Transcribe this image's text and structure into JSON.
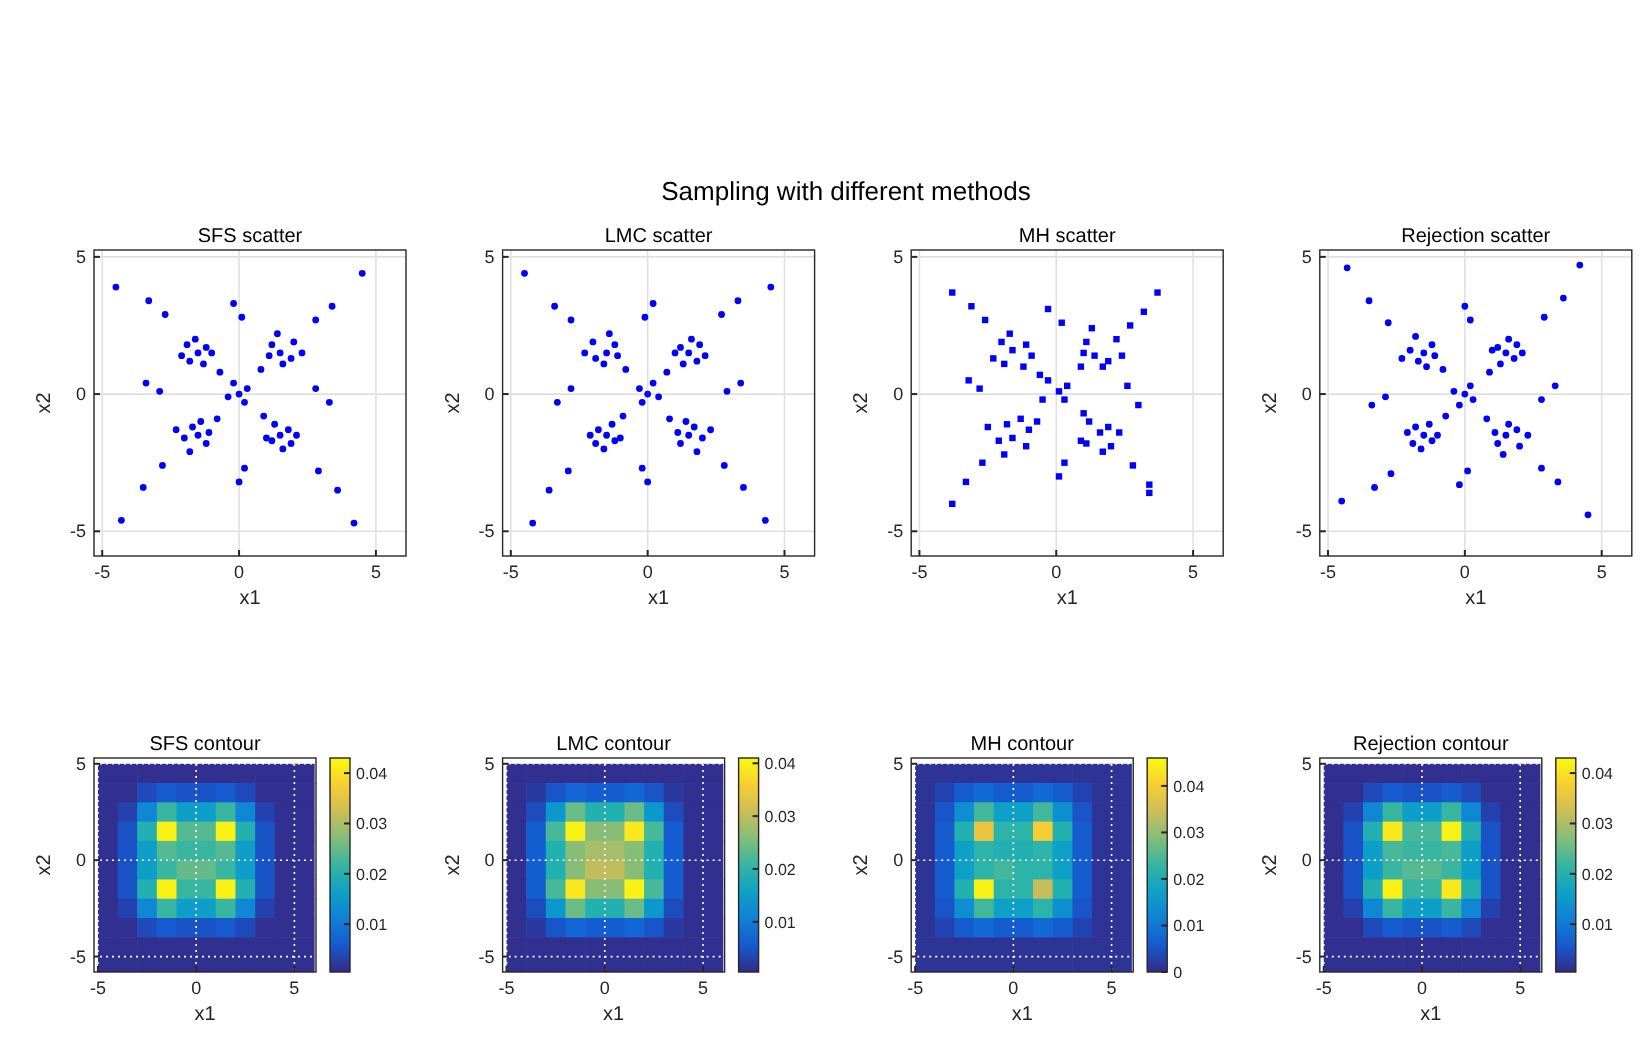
{
  "chart_data": [
    {
      "type": "scatter",
      "title": "SFS scatter",
      "xlabel": "x1",
      "ylabel": "x2",
      "annotations": [
        "Sampling with different methods"
      ],
      "xlim": [
        -5.3,
        6.1
      ],
      "ylim": [
        -5.9,
        5.25
      ],
      "xticks": [
        -5,
        0,
        5
      ],
      "yticks": [
        -5,
        0,
        5
      ],
      "grid": true,
      "marker": "circle",
      "color": "#0000ff",
      "x": [
        1.5,
        1.2,
        1.9,
        1.6,
        1.1,
        2.0,
        1.4,
        2.3,
        -1.5,
        -1.8,
        -1.2,
        -1.6,
        -2.1,
        -1.3,
        -1.9,
        -1.0,
        -1.5,
        -1.7,
        -1.2,
        -2.0,
        -1.4,
        -1.8,
        -1.1,
        -2.3,
        1.5,
        1.8,
        1.2,
        1.6,
        2.1,
        1.3,
        1.9,
        1.0,
        0,
        0.3,
        -0.2,
        0.2,
        -0.4,
        2.8,
        3.4,
        -2.7,
        -3.3,
        -2.8,
        -3.5,
        2.9,
        3.6,
        0.1,
        -0.2,
        0.2,
        0,
        2.8,
        3.3,
        -2.9,
        -3.4,
        4.5,
        -4.3,
        4.2,
        -4.5,
        0.8,
        -0.7,
        0.9,
        -0.8
      ],
      "values": [
        1.5,
        1.8,
        1.3,
        1.1,
        1.4,
        1.9,
        2.2,
        1.5,
        1.5,
        1.2,
        1.7,
        2.0,
        1.4,
        1.1,
        1.8,
        1.5,
        -1.5,
        -1.2,
        -1.8,
        -1.6,
        -1.0,
        -2.1,
        -1.4,
        -1.3,
        -1.5,
        -1.3,
        -1.7,
        -2.0,
        -1.5,
        -1.1,
        -1.8,
        -1.6,
        0,
        0.2,
        0.4,
        -0.3,
        -0.1,
        2.7,
        3.2,
        2.9,
        3.4,
        -2.6,
        -3.4,
        -2.8,
        -3.5,
        2.8,
        3.3,
        -2.7,
        -3.2,
        0.2,
        -0.3,
        0.1,
        0.4,
        4.4,
        -4.6,
        -4.7,
        3.9,
        0.9,
        0.8,
        -0.8,
        -0.9
      ]
    },
    {
      "type": "scatter",
      "title": "LMC scatter",
      "xlabel": "x1",
      "ylabel": "x2",
      "xlim": [
        -5.3,
        6.1
      ],
      "ylim": [
        -5.9,
        5.25
      ],
      "xticks": [
        -5,
        0,
        5
      ],
      "yticks": [
        -5,
        0,
        5
      ],
      "grid": true,
      "marker": "circle",
      "color": "#0000ff",
      "x": [
        -1.5,
        -1.2,
        -1.9,
        -1.6,
        -1.1,
        -2.0,
        -1.4,
        -2.3,
        1.5,
        1.8,
        1.2,
        1.6,
        2.1,
        1.3,
        1.9,
        1.0,
        1.5,
        1.7,
        1.2,
        2.0,
        1.4,
        1.8,
        1.1,
        2.3,
        -1.5,
        -1.8,
        -1.2,
        -1.6,
        -2.1,
        -1.3,
        -1.9,
        -1.0,
        0,
        -0.3,
        0.2,
        -0.2,
        0.4,
        -2.8,
        -3.4,
        2.7,
        3.3,
        2.8,
        3.5,
        -2.9,
        -3.6,
        -0.1,
        0.2,
        -0.2,
        0,
        -2.8,
        -3.3,
        2.9,
        3.4,
        -4.5,
        4.3,
        -4.2,
        4.5,
        -0.8,
        0.7,
        -0.9,
        0.8
      ],
      "values": [
        1.5,
        1.8,
        1.3,
        1.1,
        1.4,
        1.9,
        2.2,
        1.5,
        1.5,
        1.2,
        1.7,
        2.0,
        1.4,
        1.1,
        1.8,
        1.5,
        -1.5,
        -1.2,
        -1.8,
        -1.6,
        -1.0,
        -2.1,
        -1.4,
        -1.3,
        -1.5,
        -1.3,
        -1.7,
        -2.0,
        -1.5,
        -1.1,
        -1.8,
        -1.6,
        0,
        0.2,
        0.4,
        -0.3,
        -0.1,
        2.7,
        3.2,
        2.9,
        3.4,
        -2.6,
        -3.4,
        -2.8,
        -3.5,
        2.8,
        3.3,
        -2.7,
        -3.2,
        0.2,
        -0.3,
        0.1,
        0.4,
        4.4,
        -4.6,
        -4.7,
        3.9,
        0.9,
        0.8,
        -0.8,
        -0.9
      ]
    },
    {
      "type": "scatter",
      "title": "MH scatter",
      "xlabel": "x1",
      "ylabel": "x2",
      "xlim": [
        -5.3,
        6.1
      ],
      "ylim": [
        -5.9,
        5.25
      ],
      "xticks": [
        -5,
        0,
        5
      ],
      "yticks": [
        -5,
        0,
        5
      ],
      "grid": true,
      "marker": "square",
      "color": "#0000ff",
      "x": [
        1.4,
        1.1,
        1.9,
        1.7,
        1.0,
        2.2,
        1.3,
        2.4,
        -1.6,
        -1.9,
        -1.1,
        -1.7,
        -2.3,
        -1.2,
        -2.0,
        -0.9,
        -1.6,
        -1.8,
        -1.1,
        -2.1,
        -1.3,
        -1.9,
        -1.0,
        -2.5,
        1.6,
        1.9,
        1.1,
        1.7,
        2.3,
        1.2,
        2.0,
        0.9,
        0.1,
        0.4,
        -0.3,
        0.3,
        -0.5,
        2.7,
        3.2,
        -2.6,
        -3.1,
        -2.7,
        -3.3,
        2.8,
        3.4,
        0.2,
        -0.3,
        0.3,
        0.1,
        2.6,
        3.0,
        -2.8,
        -3.2,
        3.7,
        -3.8,
        3.4,
        -3.8,
        0.9,
        -0.6,
        1.0,
        -0.7
      ],
      "values": [
        1.4,
        1.9,
        1.2,
        1.0,
        1.5,
        2.0,
        2.4,
        1.4,
        1.6,
        1.1,
        1.8,
        2.2,
        1.3,
        1.0,
        1.9,
        1.4,
        -1.6,
        -1.1,
        -1.9,
        -1.7,
        -0.9,
        -2.2,
        -1.3,
        -1.2,
        -1.4,
        -1.2,
        -1.8,
        -2.1,
        -1.4,
        -1.0,
        -1.9,
        -1.7,
        0.1,
        0.3,
        0.5,
        -0.2,
        -0.2,
        2.5,
        3.0,
        2.7,
        3.2,
        -2.5,
        -3.2,
        -2.6,
        -3.3,
        2.6,
        3.1,
        -2.5,
        -3.0,
        0.3,
        -0.4,
        0.2,
        0.5,
        3.7,
        -4.0,
        -3.6,
        3.7,
        1.0,
        0.7,
        -0.7,
        -1.0
      ]
    },
    {
      "type": "scatter",
      "title": "Rejection scatter",
      "xlabel": "x1",
      "ylabel": "x2",
      "xlim": [
        -5.3,
        6.1
      ],
      "ylim": [
        -5.9,
        5.25
      ],
      "xticks": [
        -5,
        0,
        5
      ],
      "yticks": [
        -5,
        0,
        5
      ],
      "grid": true,
      "marker": "circle",
      "color": "#0000ff",
      "x": [
        1.5,
        1.2,
        1.9,
        1.6,
        1.1,
        2.0,
        1.4,
        2.3,
        -1.5,
        -1.8,
        -1.2,
        -1.6,
        -2.1,
        -1.3,
        -1.9,
        -1.0,
        -1.5,
        -1.7,
        -1.2,
        -2.0,
        -1.4,
        -1.8,
        -1.1,
        -2.3,
        1.5,
        1.8,
        1.2,
        1.6,
        2.1,
        1.3,
        1.9,
        1.0,
        0,
        0.3,
        -0.2,
        0.2,
        -0.4,
        2.8,
        3.4,
        -2.7,
        -3.3,
        -2.8,
        -3.5,
        2.9,
        3.6,
        0.1,
        -0.2,
        0.2,
        0,
        2.8,
        3.3,
        -2.9,
        -3.4,
        4.5,
        -4.3,
        4.2,
        -4.5,
        0.8,
        -0.7,
        0.9,
        -0.8
      ],
      "values": [
        -1.5,
        -1.8,
        -1.3,
        -1.1,
        -1.4,
        -1.9,
        -2.2,
        -1.5,
        -1.5,
        -1.2,
        -1.7,
        -2.0,
        -1.4,
        -1.1,
        -1.8,
        -1.5,
        1.5,
        1.2,
        1.8,
        1.6,
        1.0,
        2.1,
        1.4,
        1.3,
        1.5,
        1.3,
        1.7,
        2.0,
        1.5,
        1.1,
        1.8,
        1.6,
        0,
        -0.2,
        -0.4,
        0.3,
        0.1,
        -2.7,
        -3.2,
        -2.9,
        -3.4,
        2.6,
        3.4,
        2.8,
        3.5,
        -2.8,
        -3.3,
        2.7,
        3.2,
        -0.2,
        0.3,
        -0.1,
        -0.4,
        -4.4,
        4.6,
        4.7,
        -3.9,
        -0.9,
        -0.8,
        0.8,
        0.9
      ]
    },
    {
      "type": "heatmap",
      "title": "SFS contour",
      "xlabel": "x1",
      "ylabel": "x2",
      "xlim": [
        -5.2,
        6.1
      ],
      "ylim": [
        -5.8,
        5.3
      ],
      "xticks": [
        -5,
        0,
        5
      ],
      "yticks": [
        -5,
        0,
        5
      ],
      "grid": true,
      "clim": [
        0.0005,
        0.043
      ],
      "cticks": [
        0.01,
        0.02,
        0.03,
        0.04
      ],
      "x": [
        -4.5,
        -3.5,
        -2.5,
        -1.5,
        -0.5,
        0.5,
        1.5,
        2.5,
        3.5,
        4.5,
        5.5
      ],
      "y": [
        4.5,
        3.5,
        2.5,
        1.5,
        0.5,
        -0.5,
        -1.5,
        -2.5,
        -3.5,
        -4.5,
        -5.5
      ],
      "cells": [
        [
          0.001,
          0.001,
          0.001,
          0.001,
          0.001,
          0.001,
          0.001,
          0.001,
          0.001,
          0.001,
          0.001
        ],
        [
          0.001,
          0.001,
          0.004,
          0.006,
          0.005,
          0.005,
          0.006,
          0.004,
          0.001,
          0.001,
          0.001
        ],
        [
          0.001,
          0.003,
          0.012,
          0.022,
          0.016,
          0.016,
          0.022,
          0.012,
          0.003,
          0.001,
          0.001
        ],
        [
          0.001,
          0.005,
          0.02,
          0.042,
          0.024,
          0.024,
          0.042,
          0.02,
          0.005,
          0.001,
          0.001
        ],
        [
          0.001,
          0.005,
          0.016,
          0.024,
          0.022,
          0.022,
          0.024,
          0.016,
          0.005,
          0.001,
          0.001
        ],
        [
          0.001,
          0.005,
          0.016,
          0.022,
          0.025,
          0.025,
          0.022,
          0.016,
          0.005,
          0.001,
          0.001
        ],
        [
          0.001,
          0.005,
          0.02,
          0.042,
          0.022,
          0.022,
          0.042,
          0.02,
          0.005,
          0.001,
          0.001
        ],
        [
          0.001,
          0.003,
          0.012,
          0.022,
          0.016,
          0.016,
          0.022,
          0.012,
          0.003,
          0.001,
          0.001
        ],
        [
          0.001,
          0.001,
          0.004,
          0.006,
          0.005,
          0.005,
          0.006,
          0.004,
          0.001,
          0.001,
          0.001
        ],
        [
          0.001,
          0.001,
          0.001,
          0.001,
          0.001,
          0.001,
          0.001,
          0.001,
          0.001,
          0.001,
          0.001
        ],
        [
          0.001,
          0.001,
          0.001,
          0.001,
          0.001,
          0.001,
          0.001,
          0.001,
          0.001,
          0.001,
          0.001
        ]
      ]
    },
    {
      "type": "heatmap",
      "title": "LMC contour",
      "xlabel": "x1",
      "ylabel": "x2",
      "xlim": [
        -5.2,
        6.1
      ],
      "ylim": [
        -5.8,
        5.3
      ],
      "xticks": [
        -5,
        0,
        5
      ],
      "yticks": [
        -5,
        0,
        5
      ],
      "grid": true,
      "clim": [
        0.0005,
        0.041
      ],
      "cticks": [
        0.01,
        0.02,
        0.03,
        0.04
      ],
      "x": [
        -4.5,
        -3.5,
        -2.5,
        -1.5,
        -0.5,
        0.5,
        1.5,
        2.5,
        3.5,
        4.5,
        5.5
      ],
      "y": [
        4.5,
        3.5,
        2.5,
        1.5,
        0.5,
        -0.5,
        -1.5,
        -2.5,
        -3.5,
        -4.5,
        -5.5
      ],
      "cells": [
        [
          0.001,
          0.001,
          0.001,
          0.001,
          0.001,
          0.001,
          0.001,
          0.001,
          0.001,
          0.001,
          0.001
        ],
        [
          0.001,
          0.002,
          0.005,
          0.007,
          0.006,
          0.006,
          0.007,
          0.005,
          0.002,
          0.001,
          0.001
        ],
        [
          0.001,
          0.004,
          0.014,
          0.024,
          0.019,
          0.019,
          0.024,
          0.014,
          0.004,
          0.001,
          0.001
        ],
        [
          0.001,
          0.006,
          0.022,
          0.04,
          0.026,
          0.026,
          0.039,
          0.022,
          0.006,
          0.001,
          0.001
        ],
        [
          0.001,
          0.006,
          0.019,
          0.026,
          0.028,
          0.028,
          0.026,
          0.019,
          0.006,
          0.001,
          0.001
        ],
        [
          0.001,
          0.006,
          0.019,
          0.026,
          0.03,
          0.03,
          0.026,
          0.019,
          0.006,
          0.001,
          0.001
        ],
        [
          0.001,
          0.006,
          0.022,
          0.039,
          0.026,
          0.026,
          0.04,
          0.022,
          0.006,
          0.001,
          0.001
        ],
        [
          0.001,
          0.004,
          0.014,
          0.024,
          0.019,
          0.019,
          0.024,
          0.014,
          0.004,
          0.001,
          0.001
        ],
        [
          0.001,
          0.002,
          0.005,
          0.007,
          0.006,
          0.006,
          0.007,
          0.005,
          0.002,
          0.001,
          0.001
        ],
        [
          0.001,
          0.001,
          0.001,
          0.001,
          0.001,
          0.001,
          0.001,
          0.001,
          0.001,
          0.001,
          0.001
        ],
        [
          0.001,
          0.001,
          0.001,
          0.001,
          0.001,
          0.001,
          0.001,
          0.001,
          0.001,
          0.001,
          0.001
        ]
      ]
    },
    {
      "type": "heatmap",
      "title": "MH contour",
      "xlabel": "x1",
      "ylabel": "x2",
      "xlim": [
        -5.2,
        6.1
      ],
      "ylim": [
        -5.8,
        5.3
      ],
      "xticks": [
        -5,
        0,
        5
      ],
      "yticks": [
        -5,
        0,
        5
      ],
      "grid": true,
      "clim": [
        0,
        0.046
      ],
      "cticks": [
        0,
        0.01,
        0.02,
        0.03,
        0.04
      ],
      "x": [
        -4.5,
        -3.5,
        -2.5,
        -1.5,
        -0.5,
        0.5,
        1.5,
        2.5,
        3.5,
        4.5,
        5.5
      ],
      "y": [
        4.5,
        3.5,
        2.5,
        1.5,
        0.5,
        -0.5,
        -1.5,
        -2.5,
        -3.5,
        -4.5,
        -5.5
      ],
      "cells": [
        [
          0.001,
          0.001,
          0.001,
          0.001,
          0.001,
          0.001,
          0.001,
          0.001,
          0.001,
          0.001,
          0.001
        ],
        [
          0.001,
          0.003,
          0.006,
          0.008,
          0.006,
          0.006,
          0.008,
          0.006,
          0.003,
          0.001,
          0.001
        ],
        [
          0.001,
          0.005,
          0.014,
          0.024,
          0.017,
          0.017,
          0.024,
          0.014,
          0.005,
          0.001,
          0.001
        ],
        [
          0.001,
          0.006,
          0.021,
          0.038,
          0.022,
          0.022,
          0.04,
          0.021,
          0.006,
          0.001,
          0.001
        ],
        [
          0.001,
          0.006,
          0.017,
          0.022,
          0.021,
          0.021,
          0.022,
          0.017,
          0.006,
          0.001,
          0.001
        ],
        [
          0.001,
          0.006,
          0.017,
          0.022,
          0.024,
          0.022,
          0.022,
          0.017,
          0.006,
          0.001,
          0.001
        ],
        [
          0.001,
          0.006,
          0.021,
          0.045,
          0.022,
          0.022,
          0.034,
          0.021,
          0.006,
          0.001,
          0.001
        ],
        [
          0.001,
          0.005,
          0.014,
          0.024,
          0.017,
          0.017,
          0.022,
          0.014,
          0.005,
          0.001,
          0.001
        ],
        [
          0.001,
          0.003,
          0.006,
          0.008,
          0.006,
          0.006,
          0.008,
          0.006,
          0.003,
          0.001,
          0.001
        ],
        [
          0.001,
          0.001,
          0.001,
          0.001,
          0.001,
          0.001,
          0.001,
          0.001,
          0.001,
          0.001,
          0.001
        ],
        [
          0.001,
          0.001,
          0.001,
          0.001,
          0.001,
          0.001,
          0.001,
          0.001,
          0.001,
          0.001,
          0.001
        ]
      ]
    },
    {
      "type": "heatmap",
      "title": "Rejection contour",
      "xlabel": "x1",
      "ylabel": "x2",
      "xlim": [
        -5.2,
        6.1
      ],
      "ylim": [
        -5.8,
        5.3
      ],
      "xticks": [
        -5,
        0,
        5
      ],
      "yticks": [
        -5,
        0,
        5
      ],
      "grid": true,
      "clim": [
        0.0005,
        0.043
      ],
      "cticks": [
        0.01,
        0.02,
        0.03,
        0.04
      ],
      "x": [
        -4.5,
        -3.5,
        -2.5,
        -1.5,
        -0.5,
        0.5,
        1.5,
        2.5,
        3.5,
        4.5,
        5.5
      ],
      "y": [
        4.5,
        3.5,
        2.5,
        1.5,
        0.5,
        -0.5,
        -1.5,
        -2.5,
        -3.5,
        -4.5,
        -5.5
      ],
      "cells": [
        [
          0.001,
          0.001,
          0.001,
          0.001,
          0.001,
          0.001,
          0.001,
          0.001,
          0.001,
          0.001,
          0.001
        ],
        [
          0.001,
          0.001,
          0.004,
          0.006,
          0.005,
          0.005,
          0.006,
          0.004,
          0.001,
          0.001,
          0.001
        ],
        [
          0.001,
          0.003,
          0.012,
          0.022,
          0.016,
          0.016,
          0.022,
          0.012,
          0.003,
          0.001,
          0.001
        ],
        [
          0.001,
          0.005,
          0.02,
          0.041,
          0.023,
          0.023,
          0.042,
          0.02,
          0.005,
          0.001,
          0.001
        ],
        [
          0.001,
          0.005,
          0.016,
          0.023,
          0.022,
          0.022,
          0.023,
          0.016,
          0.005,
          0.001,
          0.001
        ],
        [
          0.001,
          0.005,
          0.016,
          0.022,
          0.024,
          0.024,
          0.022,
          0.016,
          0.005,
          0.001,
          0.001
        ],
        [
          0.001,
          0.005,
          0.02,
          0.042,
          0.022,
          0.022,
          0.041,
          0.02,
          0.005,
          0.001,
          0.001
        ],
        [
          0.001,
          0.003,
          0.012,
          0.022,
          0.016,
          0.016,
          0.022,
          0.012,
          0.003,
          0.001,
          0.001
        ],
        [
          0.001,
          0.001,
          0.004,
          0.006,
          0.005,
          0.005,
          0.006,
          0.004,
          0.001,
          0.001,
          0.001
        ],
        [
          0.001,
          0.001,
          0.001,
          0.001,
          0.001,
          0.001,
          0.001,
          0.001,
          0.001,
          0.001,
          0.001
        ],
        [
          0.001,
          0.001,
          0.001,
          0.001,
          0.001,
          0.001,
          0.001,
          0.001,
          0.001,
          0.001,
          0.001
        ]
      ]
    }
  ]
}
